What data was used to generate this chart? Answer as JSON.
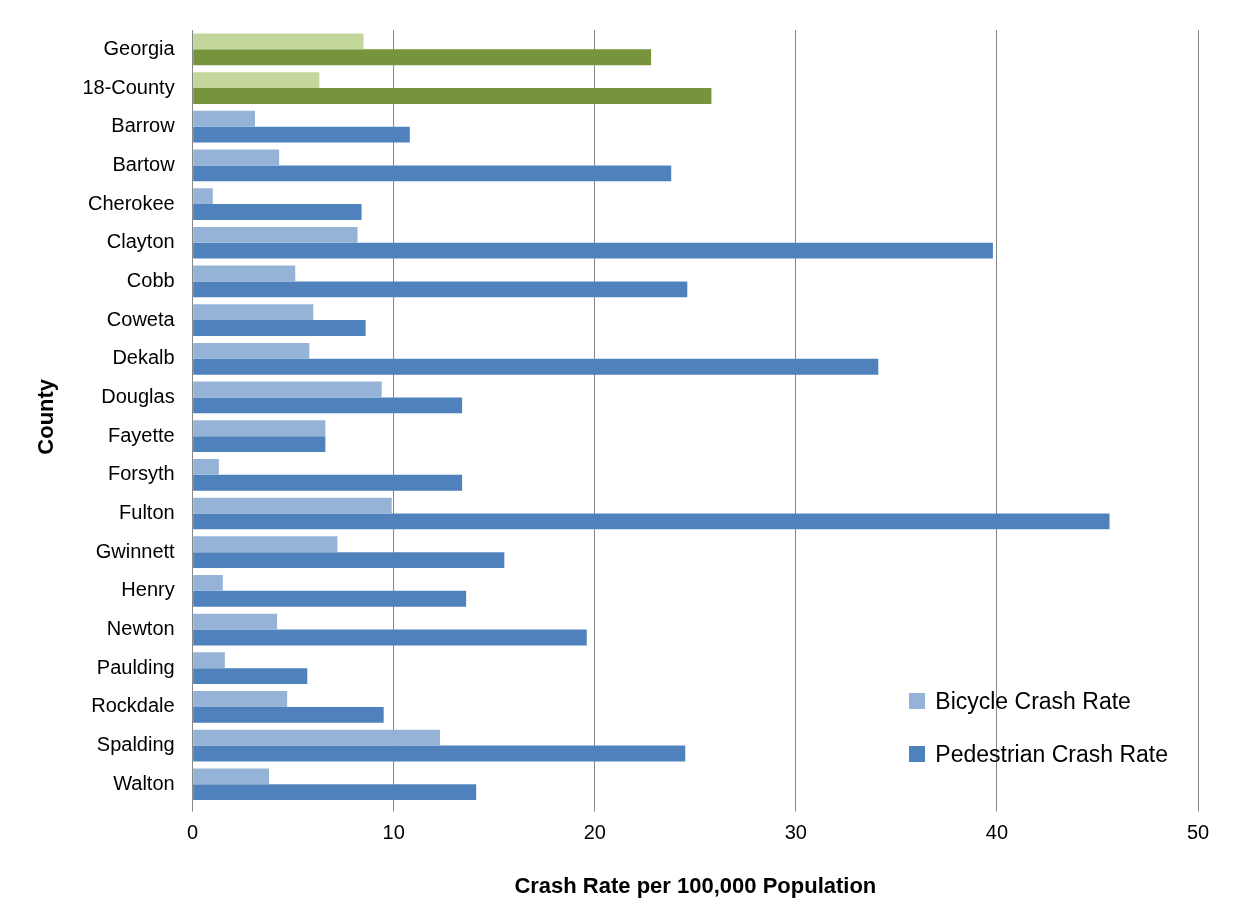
{
  "chart_data": {
    "type": "bar",
    "orientation": "horizontal",
    "xlabel": "Crash Rate per 100,000 Population",
    "ylabel": "County",
    "categories": [
      "Georgia",
      "18-County",
      "Barrow",
      "Bartow",
      "Cherokee",
      "Clayton",
      "Cobb",
      "Coweta",
      "Dekalb",
      "Douglas",
      "Fayette",
      "Forsyth",
      "Fulton",
      "Gwinnett",
      "Henry",
      "Newton",
      "Paulding",
      "Rockdale",
      "Spalding",
      "Walton"
    ],
    "series": [
      {
        "name": "Bicycle Crash Rate",
        "color": "#95b3d7",
        "colors": [
          "#c3d69b",
          "#c3d69b",
          "#95b3d7",
          "#95b3d7",
          "#95b3d7",
          "#95b3d7",
          "#95b3d7",
          "#95b3d7",
          "#95b3d7",
          "#95b3d7",
          "#95b3d7",
          "#95b3d7",
          "#95b3d7",
          "#95b3d7",
          "#95b3d7",
          "#95b3d7",
          "#95b3d7",
          "#95b3d7",
          "#95b3d7",
          "#95b3d7"
        ],
        "values": [
          8.5,
          6.3,
          3.1,
          4.3,
          1.0,
          8.2,
          5.1,
          6.0,
          5.8,
          9.4,
          6.6,
          1.3,
          9.9,
          7.2,
          1.5,
          4.2,
          1.6,
          4.7,
          12.3,
          3.8
        ]
      },
      {
        "name": "Pedestrian Crash Rate",
        "color": "#4f81bd",
        "colors": [
          "#77933c",
          "#77933c",
          "#4f81bd",
          "#4f81bd",
          "#4f81bd",
          "#4f81bd",
          "#4f81bd",
          "#4f81bd",
          "#4f81bd",
          "#4f81bd",
          "#4f81bd",
          "#4f81bd",
          "#4f81bd",
          "#4f81bd",
          "#4f81bd",
          "#4f81bd",
          "#4f81bd",
          "#4f81bd",
          "#4f81bd",
          "#4f81bd"
        ],
        "values": [
          22.8,
          25.8,
          10.8,
          23.8,
          8.4,
          39.8,
          24.6,
          8.6,
          34.1,
          13.4,
          6.6,
          13.4,
          45.6,
          15.5,
          13.6,
          19.6,
          5.7,
          9.5,
          24.5,
          14.1
        ]
      }
    ],
    "xlim": [
      0,
      50
    ],
    "xticks": [
      0,
      10,
      20,
      30,
      40,
      50
    ],
    "grid": "x",
    "legend": "bottom right"
  }
}
